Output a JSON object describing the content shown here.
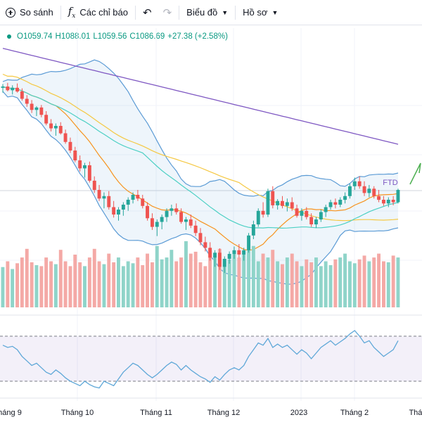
{
  "toolbar": {
    "compare_label": "So sánh",
    "indicators_label": "Các chỉ báo",
    "chart_label": "Biểu đồ",
    "profile_label": "Hồ sơ"
  },
  "ohlc": {
    "open": "O1059.74",
    "high": "H1088.01",
    "low": "L1059.56",
    "close": "C1086.69",
    "change": "+27.38 (+2.58%)"
  },
  "chart_data": {
    "type": "candlestick",
    "x_tick_labels": [
      "háng 9",
      "Tháng 10",
      "Tháng 11",
      "Tháng 12",
      "2023",
      "Tháng 2",
      "Thán"
    ],
    "annotation": "FTD",
    "colors": {
      "up": "#26a69a",
      "down": "#ef5350",
      "volume_up": "#8fd4c9",
      "volume_down": "#f4a9a6",
      "bb": "#5b9bd5",
      "ma_long": "#7e57c2",
      "ma_mid": "#f5c842",
      "ma_short": "#f7931e",
      "ma_fast": "#4dd0c4",
      "rsi": "#5fa8d8"
    },
    "candles": [
      [
        1226,
        1232,
        1218,
        1228
      ],
      [
        1228,
        1234,
        1220,
        1222
      ],
      [
        1222,
        1230,
        1215,
        1226
      ],
      [
        1226,
        1233,
        1218,
        1220
      ],
      [
        1220,
        1225,
        1205,
        1208
      ],
      [
        1208,
        1214,
        1195,
        1200
      ],
      [
        1200,
        1206,
        1185,
        1190
      ],
      [
        1190,
        1196,
        1180,
        1194
      ],
      [
        1194,
        1198,
        1178,
        1182
      ],
      [
        1182,
        1188,
        1165,
        1168
      ],
      [
        1168,
        1175,
        1155,
        1160
      ],
      [
        1160,
        1168,
        1148,
        1164
      ],
      [
        1164,
        1170,
        1150,
        1152
      ],
      [
        1152,
        1158,
        1135,
        1138
      ],
      [
        1138,
        1145,
        1120,
        1124
      ],
      [
        1124,
        1130,
        1105,
        1108
      ],
      [
        1108,
        1116,
        1090,
        1095
      ],
      [
        1095,
        1104,
        1080,
        1100
      ],
      [
        1100,
        1106,
        1072,
        1075
      ],
      [
        1075,
        1082,
        1055,
        1060
      ],
      [
        1060,
        1068,
        1042,
        1046
      ],
      [
        1046,
        1056,
        1030,
        1050
      ],
      [
        1050,
        1058,
        1028,
        1032
      ],
      [
        1032,
        1042,
        1015,
        1020
      ],
      [
        1020,
        1032,
        1010,
        1028
      ],
      [
        1028,
        1040,
        1018,
        1036
      ],
      [
        1036,
        1048,
        1026,
        1044
      ],
      [
        1044,
        1056,
        1038,
        1052
      ],
      [
        1052,
        1060,
        1042,
        1046
      ],
      [
        1046,
        1052,
        1030,
        1034
      ],
      [
        1034,
        1040,
        1010,
        1014
      ],
      [
        1014,
        1022,
        995,
        1000
      ],
      [
        1000,
        1012,
        985,
        1008
      ],
      [
        1008,
        1020,
        996,
        1016
      ],
      [
        1016,
        1030,
        1008,
        1026
      ],
      [
        1026,
        1036,
        1018,
        1030
      ],
      [
        1030,
        1038,
        1020,
        1024
      ],
      [
        1024,
        1030,
        1005,
        1008
      ],
      [
        1008,
        1016,
        995,
        1012
      ],
      [
        1012,
        1020,
        998,
        1002
      ],
      [
        1002,
        1010,
        985,
        990
      ],
      [
        990,
        998,
        970,
        975
      ],
      [
        975,
        984,
        960,
        966
      ],
      [
        966,
        975,
        945,
        950
      ],
      [
        950,
        962,
        935,
        958
      ],
      [
        958,
        965,
        930,
        935
      ],
      [
        935,
        952,
        925,
        948
      ],
      [
        948,
        960,
        940,
        956
      ],
      [
        956,
        968,
        948,
        962
      ],
      [
        962,
        972,
        950,
        955
      ],
      [
        955,
        966,
        945,
        962
      ],
      [
        962,
        990,
        958,
        986
      ],
      [
        986,
        1010,
        980,
        1004
      ],
      [
        1004,
        1030,
        1000,
        1026
      ],
      [
        1026,
        1040,
        1015,
        1020
      ],
      [
        1020,
        1062,
        1016,
        1058
      ],
      [
        1058,
        1066,
        1030,
        1035
      ],
      [
        1035,
        1045,
        1028,
        1042
      ],
      [
        1042,
        1050,
        1030,
        1034
      ],
      [
        1034,
        1046,
        1025,
        1040
      ],
      [
        1040,
        1048,
        1026,
        1030
      ],
      [
        1030,
        1036,
        1015,
        1018
      ],
      [
        1018,
        1030,
        1010,
        1026
      ],
      [
        1026,
        1032,
        1012,
        1016
      ],
      [
        1016,
        1022,
        1000,
        1004
      ],
      [
        1004,
        1016,
        998,
        1012
      ],
      [
        1012,
        1028,
        1008,
        1024
      ],
      [
        1024,
        1036,
        1016,
        1032
      ],
      [
        1032,
        1044,
        1028,
        1040
      ],
      [
        1040,
        1046,
        1030,
        1036
      ],
      [
        1036,
        1048,
        1032,
        1044
      ],
      [
        1044,
        1056,
        1038,
        1050
      ],
      [
        1050,
        1070,
        1046,
        1066
      ],
      [
        1066,
        1080,
        1060,
        1074
      ],
      [
        1074,
        1082,
        1062,
        1066
      ],
      [
        1066,
        1074,
        1050,
        1055
      ],
      [
        1055,
        1068,
        1048,
        1062
      ],
      [
        1062,
        1066,
        1046,
        1050
      ],
      [
        1050,
        1060,
        1040,
        1044
      ],
      [
        1044,
        1050,
        1034,
        1038
      ],
      [
        1038,
        1048,
        1032,
        1044
      ],
      [
        1044,
        1050,
        1035,
        1040
      ],
      [
        1040,
        1062,
        1038,
        1060
      ]
    ],
    "volume_values": [
      420,
      480,
      400,
      460,
      520,
      610,
      470,
      440,
      430,
      520,
      480,
      450,
      600,
      480,
      430,
      550,
      470,
      430,
      520,
      610,
      480,
      450,
      560,
      470,
      520,
      430,
      480,
      460,
      520,
      440,
      560,
      470,
      640,
      500,
      520,
      600,
      480,
      520,
      690,
      560,
      580,
      470,
      430,
      590,
      520,
      610,
      480,
      500,
      560,
      520,
      580,
      600,
      640,
      480,
      560,
      520,
      600,
      480,
      450,
      520,
      560,
      480,
      430,
      500,
      470,
      520,
      430,
      480,
      440,
      500,
      520,
      560,
      480,
      460,
      500,
      540,
      480,
      520,
      560,
      480,
      470,
      540,
      520
    ],
    "rsi_values": [
      62,
      60,
      61,
      58,
      52,
      48,
      44,
      46,
      42,
      38,
      36,
      40,
      37,
      33,
      30,
      28,
      26,
      30,
      27,
      25,
      24,
      30,
      28,
      26,
      32,
      38,
      42,
      46,
      44,
      40,
      36,
      33,
      36,
      40,
      44,
      47,
      45,
      40,
      44,
      40,
      37,
      34,
      32,
      29,
      34,
      31,
      36,
      40,
      42,
      40,
      44,
      52,
      58,
      64,
      62,
      68,
      60,
      63,
      60,
      62,
      58,
      54,
      58,
      55,
      50,
      55,
      60,
      63,
      66,
      62,
      65,
      68,
      72,
      75,
      70,
      64,
      66,
      60,
      56,
      52,
      55,
      58,
      66
    ]
  }
}
